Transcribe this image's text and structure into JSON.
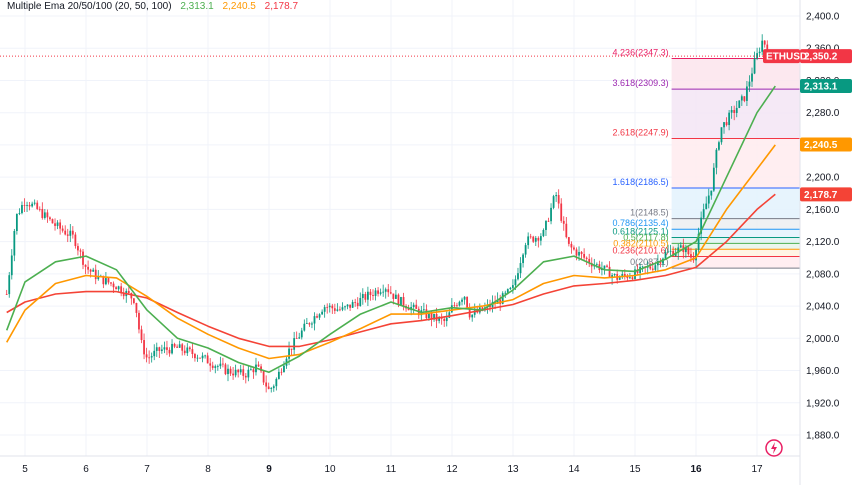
{
  "indicator": {
    "label": "Multiple Ema 20/50/100 (20, 50, 100)",
    "ema20_value": "2,313.1",
    "ema50_value": "2,240.5",
    "ema100_value": "2,178.7"
  },
  "colors": {
    "ema20": "#4caf50",
    "ema50": "#ff9800",
    "ema100": "#f44336",
    "up_candle": "#089981",
    "down_candle": "#f23645",
    "symbol_tag": "#f23645",
    "ema20_tag": "#089981"
  },
  "symbol_tag": {
    "symbol": "ETHUSD",
    "price": "2,350.2"
  },
  "price_axis": {
    "ticks": [
      "2,400.0",
      "2,360.0",
      "2,320.0",
      "2,280.0",
      "2,240.0",
      "2,200.0",
      "2,160.0",
      "2,120.0",
      "2,080.0",
      "2,040.0",
      "2,000.0",
      "1,960.0",
      "1,920.0",
      "1,880.0"
    ]
  },
  "time_axis": {
    "ticks": [
      "5",
      "6",
      "7",
      "8",
      "9",
      "10",
      "11",
      "12",
      "13",
      "14",
      "15",
      "16",
      "17"
    ],
    "bold_ticks": [
      "9",
      "16"
    ]
  },
  "fibonacci": [
    {
      "label": "4.236(2347.3)",
      "color": "#e91e63"
    },
    {
      "label": "3.618(2309.3)",
      "color": "#9c27b0"
    },
    {
      "label": "2.618(2247.9)",
      "color": "#f23645"
    },
    {
      "label": "1.618(2186.5)",
      "color": "#2962ff"
    },
    {
      "label": "1(2148.5)",
      "color": "#787b86"
    },
    {
      "label": "0.786(2135.4)",
      "color": "#2196f3"
    },
    {
      "label": "0.618(2125.1)",
      "color": "#089981"
    },
    {
      "label": "0.5(2117.8)",
      "color": "#4caf50"
    },
    {
      "label": "0.382(2110.5)",
      "color": "#ff9800"
    },
    {
      "label": "0.236(2101.6)",
      "color": "#f23645"
    },
    {
      "label": "0(2087.1)",
      "color": "#787b86"
    }
  ],
  "chart_data": {
    "type": "candlestick",
    "symbol": "ETHUSD",
    "ylim": [
      1870,
      2410
    ],
    "x_range_days": [
      4.6,
      17.6
    ],
    "fib_levels": [
      2347.3,
      2309.3,
      2247.9,
      2186.5,
      2148.5,
      2135.4,
      2125.1,
      2117.8,
      2110.5,
      2101.6,
      2087.1
    ],
    "fib_start_day": 15.6,
    "last_price": 2350.2,
    "price_path": [
      [
        4.7,
        2055
      ],
      [
        4.85,
        2150
      ],
      [
        5.0,
        2172
      ],
      [
        5.2,
        2160
      ],
      [
        5.5,
        2140
      ],
      [
        5.8,
        2125
      ],
      [
        6.0,
        2088
      ],
      [
        6.2,
        2075
      ],
      [
        6.5,
        2065
      ],
      [
        6.8,
        2048
      ],
      [
        6.9,
        1995
      ],
      [
        7.0,
        1975
      ],
      [
        7.2,
        1985
      ],
      [
        7.5,
        1988
      ],
      [
        7.8,
        1980
      ],
      [
        8.0,
        1972
      ],
      [
        8.3,
        1960
      ],
      [
        8.6,
        1955
      ],
      [
        8.8,
        1965
      ],
      [
        9.0,
        1935
      ],
      [
        9.1,
        1945
      ],
      [
        9.3,
        1982
      ],
      [
        9.6,
        2015
      ],
      [
        9.9,
        2040
      ],
      [
        10.2,
        2035
      ],
      [
        10.6,
        2052
      ],
      [
        10.9,
        2065
      ],
      [
        11.1,
        2048
      ],
      [
        11.4,
        2035
      ],
      [
        11.7,
        2025
      ],
      [
        11.9,
        2020
      ],
      [
        12.0,
        2038
      ],
      [
        12.2,
        2055
      ],
      [
        12.3,
        2028
      ],
      [
        12.5,
        2035
      ],
      [
        12.8,
        2048
      ],
      [
        13.0,
        2062
      ],
      [
        13.2,
        2120
      ],
      [
        13.5,
        2130
      ],
      [
        13.7,
        2180
      ],
      [
        13.9,
        2115
      ],
      [
        14.2,
        2098
      ],
      [
        14.5,
        2085
      ],
      [
        14.7,
        2075
      ],
      [
        15.0,
        2080
      ],
      [
        15.3,
        2090
      ],
      [
        15.5,
        2105
      ],
      [
        15.8,
        2112
      ],
      [
        15.95,
        2098
      ],
      [
        16.1,
        2150
      ],
      [
        16.25,
        2188
      ],
      [
        16.4,
        2260
      ],
      [
        16.6,
        2280
      ],
      [
        16.8,
        2300
      ],
      [
        16.95,
        2340
      ],
      [
        17.1,
        2372
      ],
      [
        17.2,
        2350
      ]
    ],
    "ema20_path": [
      [
        4.7,
        2010
      ],
      [
        5.0,
        2070
      ],
      [
        5.5,
        2095
      ],
      [
        6.0,
        2102
      ],
      [
        6.5,
        2085
      ],
      [
        7.0,
        2035
      ],
      [
        7.5,
        2000
      ],
      [
        8.0,
        1988
      ],
      [
        8.5,
        1970
      ],
      [
        9.0,
        1958
      ],
      [
        9.5,
        1978
      ],
      [
        10.0,
        2005
      ],
      [
        10.5,
        2030
      ],
      [
        11.0,
        2045
      ],
      [
        11.5,
        2032
      ],
      [
        12.0,
        2038
      ],
      [
        12.5,
        2035
      ],
      [
        13.0,
        2060
      ],
      [
        13.5,
        2095
      ],
      [
        14.0,
        2102
      ],
      [
        14.5,
        2085
      ],
      [
        15.0,
        2083
      ],
      [
        15.5,
        2098
      ],
      [
        16.0,
        2120
      ],
      [
        16.5,
        2200
      ],
      [
        17.0,
        2280
      ],
      [
        17.3,
        2313
      ]
    ],
    "ema50_path": [
      [
        4.7,
        1995
      ],
      [
        5.0,
        2035
      ],
      [
        5.5,
        2068
      ],
      [
        6.0,
        2078
      ],
      [
        6.5,
        2075
      ],
      [
        7.0,
        2052
      ],
      [
        7.5,
        2025
      ],
      [
        8.0,
        2005
      ],
      [
        8.5,
        1988
      ],
      [
        9.0,
        1975
      ],
      [
        9.5,
        1980
      ],
      [
        10.0,
        1995
      ],
      [
        10.5,
        2012
      ],
      [
        11.0,
        2030
      ],
      [
        11.5,
        2030
      ],
      [
        12.0,
        2035
      ],
      [
        12.5,
        2040
      ],
      [
        13.0,
        2048
      ],
      [
        13.5,
        2068
      ],
      [
        14.0,
        2078
      ],
      [
        14.5,
        2075
      ],
      [
        15.0,
        2078
      ],
      [
        15.5,
        2085
      ],
      [
        16.0,
        2100
      ],
      [
        16.5,
        2160
      ],
      [
        17.0,
        2210
      ],
      [
        17.3,
        2240
      ]
    ],
    "ema100_path": [
      [
        4.7,
        2032
      ],
      [
        5.0,
        2045
      ],
      [
        5.5,
        2055
      ],
      [
        6.0,
        2058
      ],
      [
        6.5,
        2058
      ],
      [
        7.0,
        2050
      ],
      [
        7.5,
        2032
      ],
      [
        8.0,
        2015
      ],
      [
        8.5,
        2000
      ],
      [
        9.0,
        1990
      ],
      [
        9.5,
        1990
      ],
      [
        10.0,
        1998
      ],
      [
        10.5,
        2008
      ],
      [
        11.0,
        2018
      ],
      [
        11.5,
        2022
      ],
      [
        12.0,
        2028
      ],
      [
        12.5,
        2035
      ],
      [
        13.0,
        2042
      ],
      [
        13.5,
        2055
      ],
      [
        14.0,
        2065
      ],
      [
        14.5,
        2068
      ],
      [
        15.0,
        2072
      ],
      [
        15.5,
        2078
      ],
      [
        16.0,
        2088
      ],
      [
        16.5,
        2120
      ],
      [
        17.0,
        2160
      ],
      [
        17.3,
        2178.7
      ]
    ]
  }
}
